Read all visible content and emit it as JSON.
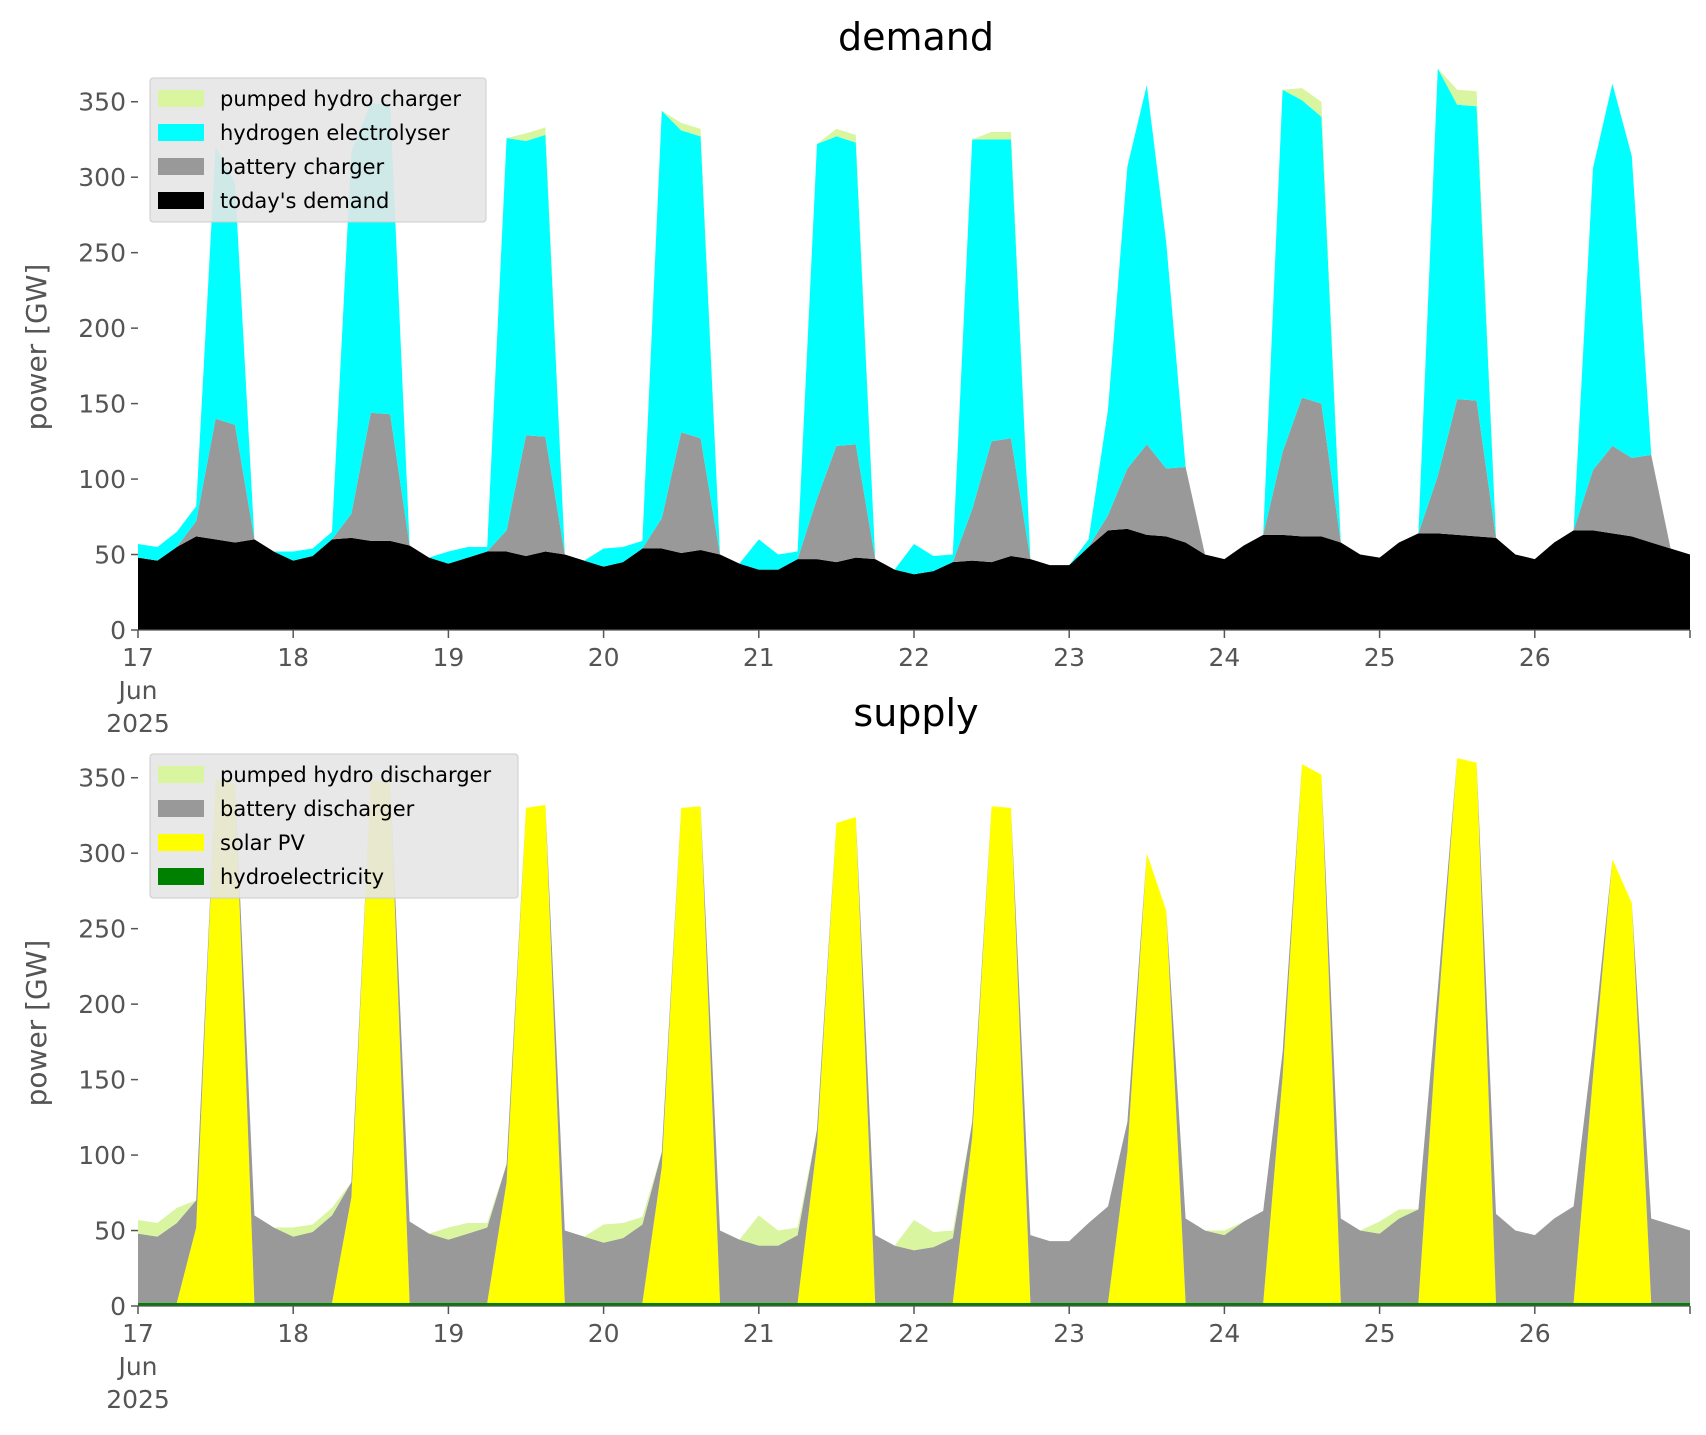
{
  "chart_data": [
    {
      "type": "area",
      "stacked": true,
      "title": "demand",
      "xlabel": "",
      "ylabel": "power [GW]",
      "ylim": [
        0,
        375
      ],
      "yticks": [
        0,
        50,
        100,
        150,
        200,
        250,
        300,
        350
      ],
      "xlim": [
        "2025-06-17",
        "2025-06-27"
      ],
      "xticks": [
        {
          "date": "2025-06-17",
          "label": "17",
          "sub": [
            "Jun",
            "2025"
          ]
        },
        {
          "date": "2025-06-18",
          "label": "18"
        },
        {
          "date": "2025-06-19",
          "label": "19"
        },
        {
          "date": "2025-06-20",
          "label": "20"
        },
        {
          "date": "2025-06-21",
          "label": "21"
        },
        {
          "date": "2025-06-22",
          "label": "22"
        },
        {
          "date": "2025-06-23",
          "label": "23"
        },
        {
          "date": "2025-06-24",
          "label": "24"
        },
        {
          "date": "2025-06-25",
          "label": "25"
        },
        {
          "date": "2025-06-26",
          "label": "26"
        },
        {
          "date": "2025-06-27",
          "label": ""
        }
      ],
      "grid": false,
      "legend_position": "top-left",
      "x": [
        "2025-06-17T00:00",
        "2025-06-17T03:00",
        "2025-06-17T06:00",
        "2025-06-17T09:00",
        "2025-06-17T12:00",
        "2025-06-17T15:00",
        "2025-06-17T18:00",
        "2025-06-17T21:00",
        "2025-06-18T00:00",
        "2025-06-18T03:00",
        "2025-06-18T06:00",
        "2025-06-18T09:00",
        "2025-06-18T12:00",
        "2025-06-18T15:00",
        "2025-06-18T18:00",
        "2025-06-18T21:00",
        "2025-06-19T00:00",
        "2025-06-19T03:00",
        "2025-06-19T06:00",
        "2025-06-19T09:00",
        "2025-06-19T12:00",
        "2025-06-19T15:00",
        "2025-06-19T18:00",
        "2025-06-19T21:00",
        "2025-06-20T00:00",
        "2025-06-20T03:00",
        "2025-06-20T06:00",
        "2025-06-20T09:00",
        "2025-06-20T12:00",
        "2025-06-20T15:00",
        "2025-06-20T18:00",
        "2025-06-20T21:00",
        "2025-06-21T00:00",
        "2025-06-21T03:00",
        "2025-06-21T06:00",
        "2025-06-21T09:00",
        "2025-06-21T12:00",
        "2025-06-21T15:00",
        "2025-06-21T18:00",
        "2025-06-21T21:00",
        "2025-06-22T00:00",
        "2025-06-22T03:00",
        "2025-06-22T06:00",
        "2025-06-22T09:00",
        "2025-06-22T12:00",
        "2025-06-22T15:00",
        "2025-06-22T18:00",
        "2025-06-22T21:00",
        "2025-06-23T00:00",
        "2025-06-23T03:00",
        "2025-06-23T06:00",
        "2025-06-23T09:00",
        "2025-06-23T12:00",
        "2025-06-23T15:00",
        "2025-06-23T18:00",
        "2025-06-23T21:00",
        "2025-06-24T00:00",
        "2025-06-24T03:00",
        "2025-06-24T06:00",
        "2025-06-24T09:00",
        "2025-06-24T12:00",
        "2025-06-24T15:00",
        "2025-06-24T18:00",
        "2025-06-24T21:00",
        "2025-06-25T00:00",
        "2025-06-25T03:00",
        "2025-06-25T06:00",
        "2025-06-25T09:00",
        "2025-06-25T12:00",
        "2025-06-25T15:00",
        "2025-06-25T18:00",
        "2025-06-25T21:00",
        "2025-06-26T00:00",
        "2025-06-26T03:00",
        "2025-06-26T06:00",
        "2025-06-26T09:00",
        "2025-06-26T12:00",
        "2025-06-26T15:00",
        "2025-06-26T18:00",
        "2025-06-26T21:00",
        "2025-06-27T00:00"
      ],
      "series": [
        {
          "name": "today's demand",
          "color": "#000000",
          "values": [
            48,
            46,
            55,
            62,
            60,
            58,
            60,
            52,
            46,
            49,
            60,
            61,
            59,
            59,
            56,
            48,
            44,
            48,
            52,
            52,
            49,
            52,
            50,
            46,
            42,
            45,
            54,
            54,
            51,
            53,
            50,
            44,
            40,
            40,
            47,
            47,
            45,
            48,
            47,
            40,
            37,
            39,
            45,
            46,
            45,
            49,
            47,
            43,
            43,
            55,
            66,
            67,
            63,
            62,
            58,
            50,
            47,
            56,
            63,
            63,
            62,
            62,
            58,
            50,
            48,
            58,
            64,
            64,
            63,
            62,
            61,
            50,
            47,
            58,
            66,
            66,
            64,
            62,
            58,
            54,
            50
          ]
        },
        {
          "name": "battery charger",
          "color": "#999999",
          "values": [
            0,
            0,
            0,
            10,
            80,
            78,
            0,
            0,
            0,
            0,
            0,
            16,
            85,
            84,
            0,
            0,
            0,
            0,
            0,
            14,
            80,
            76,
            0,
            0,
            0,
            0,
            0,
            20,
            80,
            74,
            0,
            0,
            0,
            0,
            0,
            40,
            77,
            75,
            0,
            0,
            0,
            0,
            0,
            34,
            80,
            78,
            0,
            0,
            0,
            0,
            10,
            40,
            60,
            45,
            50,
            0,
            0,
            0,
            0,
            55,
            92,
            88,
            0,
            0,
            0,
            0,
            0,
            38,
            90,
            90,
            0,
            0,
            0,
            0,
            0,
            40,
            58,
            52,
            58,
            0,
            0
          ]
        },
        {
          "name": "hydrogen electrolyser",
          "color": "#00ffff",
          "values": [
            9,
            9,
            10,
            10,
            180,
            160,
            0,
            0,
            6,
            5,
            5,
            240,
            205,
            205,
            0,
            0,
            8,
            7,
            3,
            260,
            195,
            200,
            0,
            0,
            12,
            10,
            5,
            270,
            200,
            200,
            0,
            0,
            20,
            10,
            5,
            235,
            205,
            200,
            0,
            0,
            20,
            10,
            5,
            245,
            200,
            198,
            0,
            0,
            0,
            5,
            70,
            200,
            238,
            150,
            0,
            0,
            0,
            0,
            0,
            240,
            197,
            190,
            0,
            0,
            0,
            0,
            0,
            270,
            195,
            195,
            0,
            0,
            0,
            0,
            0,
            200,
            240,
            200,
            0,
            0,
            0
          ]
        },
        {
          "name": "pumped hydro charger",
          "color": "#d9f5a0",
          "values": [
            0,
            0,
            0,
            0,
            0,
            0,
            0,
            0,
            0,
            0,
            0,
            0,
            0,
            0,
            0,
            0,
            0,
            0,
            0,
            0,
            5,
            5,
            0,
            0,
            0,
            0,
            0,
            0,
            5,
            5,
            0,
            0,
            0,
            0,
            0,
            0,
            5,
            5,
            0,
            0,
            0,
            0,
            0,
            0,
            5,
            5,
            0,
            0,
            0,
            0,
            0,
            0,
            0,
            0,
            0,
            0,
            0,
            0,
            0,
            0,
            8,
            10,
            0,
            0,
            0,
            0,
            0,
            0,
            10,
            10,
            0,
            0,
            0,
            0,
            0,
            0,
            0,
            0,
            0,
            0,
            0
          ]
        }
      ]
    },
    {
      "type": "area",
      "stacked": true,
      "title": "supply",
      "xlabel": "",
      "ylabel": "power [GW]",
      "ylim": [
        0,
        375
      ],
      "yticks": [
        0,
        50,
        100,
        150,
        200,
        250,
        300,
        350
      ],
      "xlim": [
        "2025-06-17",
        "2025-06-27"
      ],
      "xticks": [
        {
          "date": "2025-06-17",
          "label": "17",
          "sub": [
            "Jun",
            "2025"
          ]
        },
        {
          "date": "2025-06-18",
          "label": "18"
        },
        {
          "date": "2025-06-19",
          "label": "19"
        },
        {
          "date": "2025-06-20",
          "label": "20"
        },
        {
          "date": "2025-06-21",
          "label": "21"
        },
        {
          "date": "2025-06-22",
          "label": "22"
        },
        {
          "date": "2025-06-23",
          "label": "23"
        },
        {
          "date": "2025-06-24",
          "label": "24"
        },
        {
          "date": "2025-06-25",
          "label": "25"
        },
        {
          "date": "2025-06-26",
          "label": "26"
        },
        {
          "date": "2025-06-27",
          "label": ""
        }
      ],
      "grid": false,
      "legend_position": "top-left",
      "x": [
        "2025-06-17T00:00",
        "2025-06-17T03:00",
        "2025-06-17T06:00",
        "2025-06-17T09:00",
        "2025-06-17T12:00",
        "2025-06-17T15:00",
        "2025-06-17T18:00",
        "2025-06-17T21:00",
        "2025-06-18T00:00",
        "2025-06-18T03:00",
        "2025-06-18T06:00",
        "2025-06-18T09:00",
        "2025-06-18T12:00",
        "2025-06-18T15:00",
        "2025-06-18T18:00",
        "2025-06-18T21:00",
        "2025-06-19T00:00",
        "2025-06-19T03:00",
        "2025-06-19T06:00",
        "2025-06-19T09:00",
        "2025-06-19T12:00",
        "2025-06-19T15:00",
        "2025-06-19T18:00",
        "2025-06-19T21:00",
        "2025-06-20T00:00",
        "2025-06-20T03:00",
        "2025-06-20T06:00",
        "2025-06-20T09:00",
        "2025-06-20T12:00",
        "2025-06-20T15:00",
        "2025-06-20T18:00",
        "2025-06-20T21:00",
        "2025-06-21T00:00",
        "2025-06-21T03:00",
        "2025-06-21T06:00",
        "2025-06-21T09:00",
        "2025-06-21T12:00",
        "2025-06-21T15:00",
        "2025-06-21T18:00",
        "2025-06-21T21:00",
        "2025-06-22T00:00",
        "2025-06-22T03:00",
        "2025-06-22T06:00",
        "2025-06-22T09:00",
        "2025-06-22T12:00",
        "2025-06-22T15:00",
        "2025-06-22T18:00",
        "2025-06-22T21:00",
        "2025-06-23T00:00",
        "2025-06-23T03:00",
        "2025-06-23T06:00",
        "2025-06-23T09:00",
        "2025-06-23T12:00",
        "2025-06-23T15:00",
        "2025-06-23T18:00",
        "2025-06-23T21:00",
        "2025-06-24T00:00",
        "2025-06-24T03:00",
        "2025-06-24T06:00",
        "2025-06-24T09:00",
        "2025-06-24T12:00",
        "2025-06-24T15:00",
        "2025-06-24T18:00",
        "2025-06-24T21:00",
        "2025-06-25T00:00",
        "2025-06-25T03:00",
        "2025-06-25T06:00",
        "2025-06-25T09:00",
        "2025-06-25T12:00",
        "2025-06-25T15:00",
        "2025-06-25T18:00",
        "2025-06-25T21:00",
        "2025-06-26T00:00",
        "2025-06-26T03:00",
        "2025-06-26T06:00",
        "2025-06-26T09:00",
        "2025-06-26T12:00",
        "2025-06-26T15:00",
        "2025-06-26T18:00",
        "2025-06-26T21:00",
        "2025-06-27T00:00"
      ],
      "series": [
        {
          "name": "hydroelectricity",
          "color": "#008000",
          "values": [
            2,
            2,
            2,
            2,
            2,
            2,
            2,
            2,
            2,
            2,
            2,
            2,
            2,
            2,
            2,
            2,
            2,
            2,
            2,
            2,
            2,
            2,
            2,
            2,
            2,
            2,
            2,
            2,
            2,
            2,
            2,
            2,
            2,
            2,
            2,
            2,
            2,
            2,
            2,
            2,
            2,
            2,
            2,
            2,
            2,
            2,
            2,
            2,
            2,
            2,
            2,
            2,
            2,
            2,
            2,
            2,
            2,
            2,
            2,
            2,
            2,
            2,
            2,
            2,
            2,
            2,
            2,
            2,
            2,
            2,
            2,
            2,
            2,
            2,
            2,
            2,
            2,
            2,
            2,
            2,
            2
          ]
        },
        {
          "name": "solar PV",
          "color": "#ffff00",
          "values": [
            0,
            0,
            0,
            50,
            347,
            344,
            0,
            0,
            0,
            0,
            0,
            70,
            346,
            345,
            0,
            0,
            0,
            0,
            0,
            80,
            328,
            330,
            0,
            0,
            0,
            0,
            0,
            90,
            328,
            329,
            0,
            0,
            0,
            0,
            0,
            105,
            318,
            322,
            0,
            0,
            0,
            0,
            0,
            110,
            329,
            328,
            0,
            0,
            0,
            0,
            0,
            100,
            298,
            260,
            0,
            0,
            0,
            0,
            0,
            150,
            357,
            350,
            0,
            0,
            0,
            0,
            0,
            190,
            361,
            358,
            0,
            0,
            0,
            0,
            0,
            150,
            294,
            265,
            0,
            0,
            0
          ]
        },
        {
          "name": "battery discharger",
          "color": "#999999",
          "values": [
            46,
            44,
            53,
            18,
            0,
            0,
            58,
            50,
            44,
            47,
            58,
            10,
            0,
            0,
            54,
            46,
            42,
            46,
            50,
            12,
            0,
            0,
            48,
            44,
            40,
            43,
            52,
            10,
            0,
            0,
            48,
            42,
            38,
            38,
            45,
            10,
            0,
            0,
            45,
            38,
            35,
            37,
            43,
            10,
            0,
            0,
            45,
            41,
            41,
            53,
            64,
            20,
            0,
            0,
            56,
            48,
            45,
            54,
            61,
            16,
            0,
            0,
            56,
            48,
            46,
            56,
            62,
            18,
            0,
            0,
            59,
            48,
            45,
            56,
            64,
            20,
            0,
            0,
            56,
            52,
            48
          ]
        },
        {
          "name": "pumped hydro discharger",
          "color": "#d9f5a0",
          "values": [
            9,
            9,
            10,
            0,
            0,
            0,
            0,
            0,
            6,
            5,
            5,
            0,
            0,
            0,
            0,
            0,
            8,
            7,
            3,
            0,
            0,
            0,
            0,
            0,
            12,
            10,
            5,
            0,
            0,
            0,
            0,
            0,
            20,
            10,
            5,
            0,
            0,
            0,
            0,
            0,
            20,
            10,
            5,
            0,
            0,
            0,
            0,
            0,
            0,
            0,
            0,
            0,
            0,
            0,
            0,
            0,
            3,
            0,
            0,
            0,
            0,
            0,
            0,
            0,
            8,
            6,
            0,
            0,
            0,
            0,
            0,
            0,
            0,
            0,
            0,
            0,
            0,
            0,
            0,
            0,
            0
          ]
        }
      ]
    }
  ]
}
